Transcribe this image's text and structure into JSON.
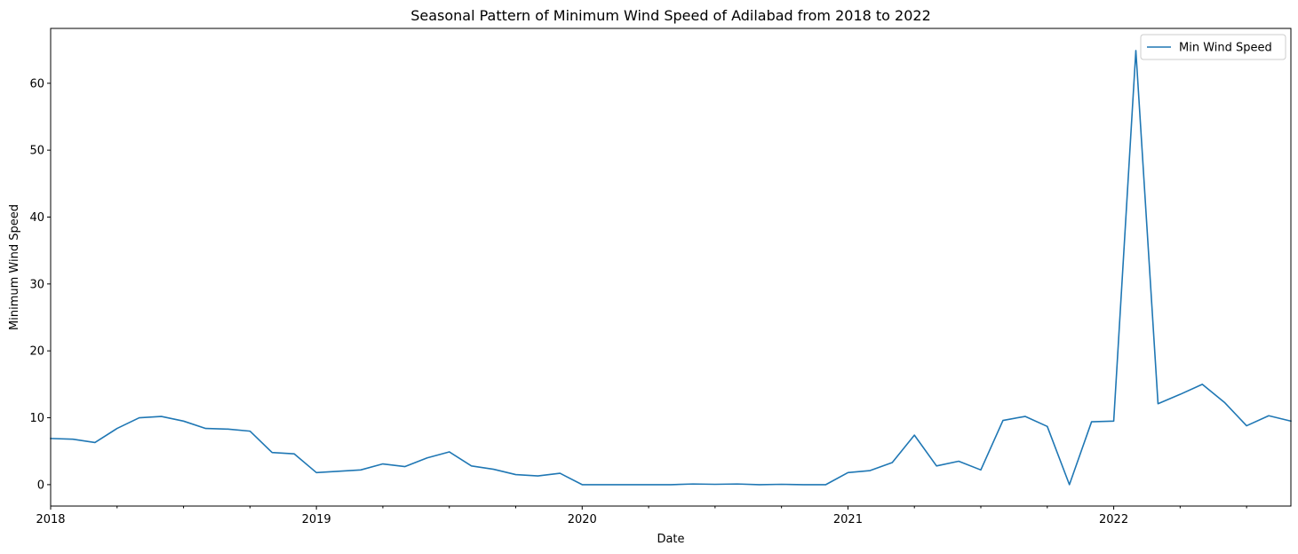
{
  "chart_data": {
    "type": "line",
    "title": "Seasonal Pattern of Minimum Wind Speed of Adilabad from 2018 to 2022",
    "xlabel": "Date",
    "ylabel": "Minimum Wind Speed",
    "x_range_months": [
      0,
      56
    ],
    "ylim": [
      -3.2,
      68.2
    ],
    "yticks": [
      0,
      10,
      20,
      30,
      40,
      50,
      60
    ],
    "xticks": [
      {
        "month": 0,
        "label": "2018"
      },
      {
        "month": 12,
        "label": "2019"
      },
      {
        "month": 24,
        "label": "2020"
      },
      {
        "month": 36,
        "label": "2021"
      },
      {
        "month": 48,
        "label": "2022"
      }
    ],
    "minor_tick_interval_months": 3,
    "grid": false,
    "legend_position": "upper right",
    "series": [
      {
        "name": "Min Wind Speed",
        "color": "#1f77b4",
        "values": [
          6.9,
          6.8,
          6.3,
          8.4,
          10.0,
          10.2,
          9.5,
          8.4,
          8.3,
          8.0,
          4.8,
          4.6,
          1.8,
          2.0,
          2.2,
          3.1,
          2.7,
          4.0,
          4.9,
          2.8,
          2.3,
          1.5,
          1.3,
          1.7,
          0.0,
          0.0,
          0.0,
          0.0,
          0.0,
          0.1,
          0.05,
          0.1,
          0.0,
          0.05,
          0.0,
          0.0,
          1.8,
          2.1,
          3.3,
          7.4,
          2.8,
          3.5,
          2.2,
          9.6,
          10.2,
          8.7,
          0.0,
          9.4,
          9.5,
          64.9,
          12.1,
          13.5,
          15.0,
          12.3,
          8.8,
          10.3,
          9.5
        ]
      }
    ]
  }
}
